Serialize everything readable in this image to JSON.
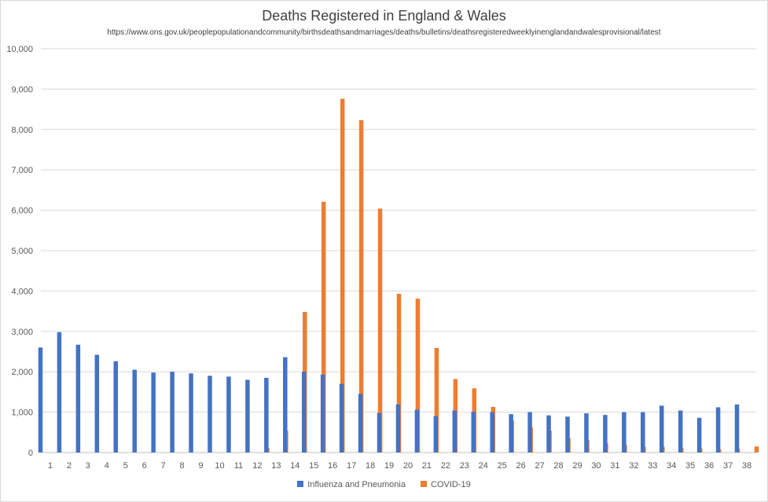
{
  "chart_data": {
    "type": "bar",
    "title": "Deaths Registered in England & Wales",
    "subtitle": "https://www.ons.gov.uk/peoplepopulationandcommunity/birthsdeathsandmarriages/deaths/bulletins/deathsregisteredweeklyinenglandandwalesprovisional/latest",
    "xlabel": "",
    "ylabel": "",
    "ylim": [
      0,
      10000
    ],
    "yticks": [
      "0",
      "1,000",
      "2,000",
      "3,000",
      "4,000",
      "5,000",
      "6,000",
      "7,000",
      "8,000",
      "9,000",
      "10,000"
    ],
    "grid": true,
    "legend_position": "bottom",
    "categories": [
      "1",
      "2",
      "3",
      "4",
      "5",
      "6",
      "7",
      "8",
      "9",
      "10",
      "11",
      "12",
      "13",
      "14",
      "15",
      "16",
      "17",
      "18",
      "19",
      "20",
      "21",
      "22",
      "23",
      "24",
      "25",
      "26",
      "27",
      "28",
      "29",
      "30",
      "31",
      "32",
      "33",
      "34",
      "35",
      "36",
      "37",
      "38"
    ],
    "series": [
      {
        "name": "Influenza and Pneumonia",
        "color": "#4472c4",
        "values": [
          2600,
          2980,
          2670,
          2420,
          2260,
          2050,
          1980,
          2000,
          1960,
          1900,
          1880,
          1800,
          1850,
          2360,
          2000,
          1930,
          1700,
          1450,
          980,
          1190,
          1060,
          900,
          1040,
          1010,
          1000,
          950,
          1000,
          920,
          890,
          970,
          930,
          1000,
          1000,
          1160,
          1040,
          860,
          1120,
          1190
        ]
      },
      {
        "name": "COVID-19",
        "color": "#ed7d31",
        "values": [
          0,
          0,
          0,
          0,
          0,
          0,
          0,
          0,
          0,
          0,
          0,
          110,
          540,
          3480,
          6210,
          8760,
          8230,
          6040,
          3930,
          3810,
          2590,
          1820,
          1590,
          1130,
          790,
          620,
          540,
          360,
          310,
          230,
          190,
          140,
          140,
          120,
          100,
          80,
          90,
          150
        ]
      }
    ]
  }
}
